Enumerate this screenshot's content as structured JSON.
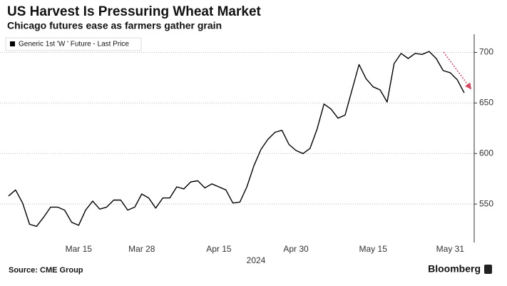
{
  "chart_data": {
    "type": "line",
    "title": "US Harvest Is Pressuring Wheat Market",
    "subtitle": "Chicago futures ease as farmers gather grain",
    "xlabel": "2024",
    "source": "Source: CME Group",
    "credit": "Bloomberg",
    "categories": [
      null,
      null,
      null,
      null,
      null,
      null,
      null,
      null,
      null,
      null,
      "Mar 15",
      null,
      null,
      null,
      null,
      null,
      null,
      null,
      null,
      "Mar 28",
      null,
      null,
      null,
      null,
      null,
      null,
      null,
      null,
      null,
      null,
      "Apr 15",
      null,
      null,
      null,
      null,
      null,
      null,
      null,
      null,
      null,
      null,
      "Apr 30",
      null,
      null,
      null,
      null,
      null,
      null,
      null,
      null,
      null,
      null,
      "May 15",
      null,
      null,
      null,
      null,
      null,
      null,
      null,
      null,
      null,
      null,
      "May 31",
      null,
      null
    ],
    "series": [
      {
        "name": "Generic 1st 'W ' Future - Last Price",
        "color": "#000000",
        "values": [
          558,
          564,
          551,
          530,
          528,
          537,
          547,
          547,
          544,
          532,
          529,
          544,
          553,
          545,
          547,
          554,
          554,
          544,
          547,
          560,
          556,
          546,
          556,
          556,
          567,
          565,
          572,
          573,
          566,
          570,
          567,
          564,
          551,
          552,
          567,
          588,
          604,
          614,
          621,
          623,
          609,
          603,
          600,
          605,
          624,
          649,
          644,
          635,
          638,
          663,
          688,
          674,
          666,
          663,
          651,
          689,
          699,
          694,
          699,
          698,
          701,
          694,
          682,
          680,
          673,
          660
        ]
      }
    ],
    "ylim": [
      512,
      718
    ],
    "yticks": [
      550,
      600,
      650,
      700
    ],
    "grid": true,
    "y_axis_side": "right"
  }
}
